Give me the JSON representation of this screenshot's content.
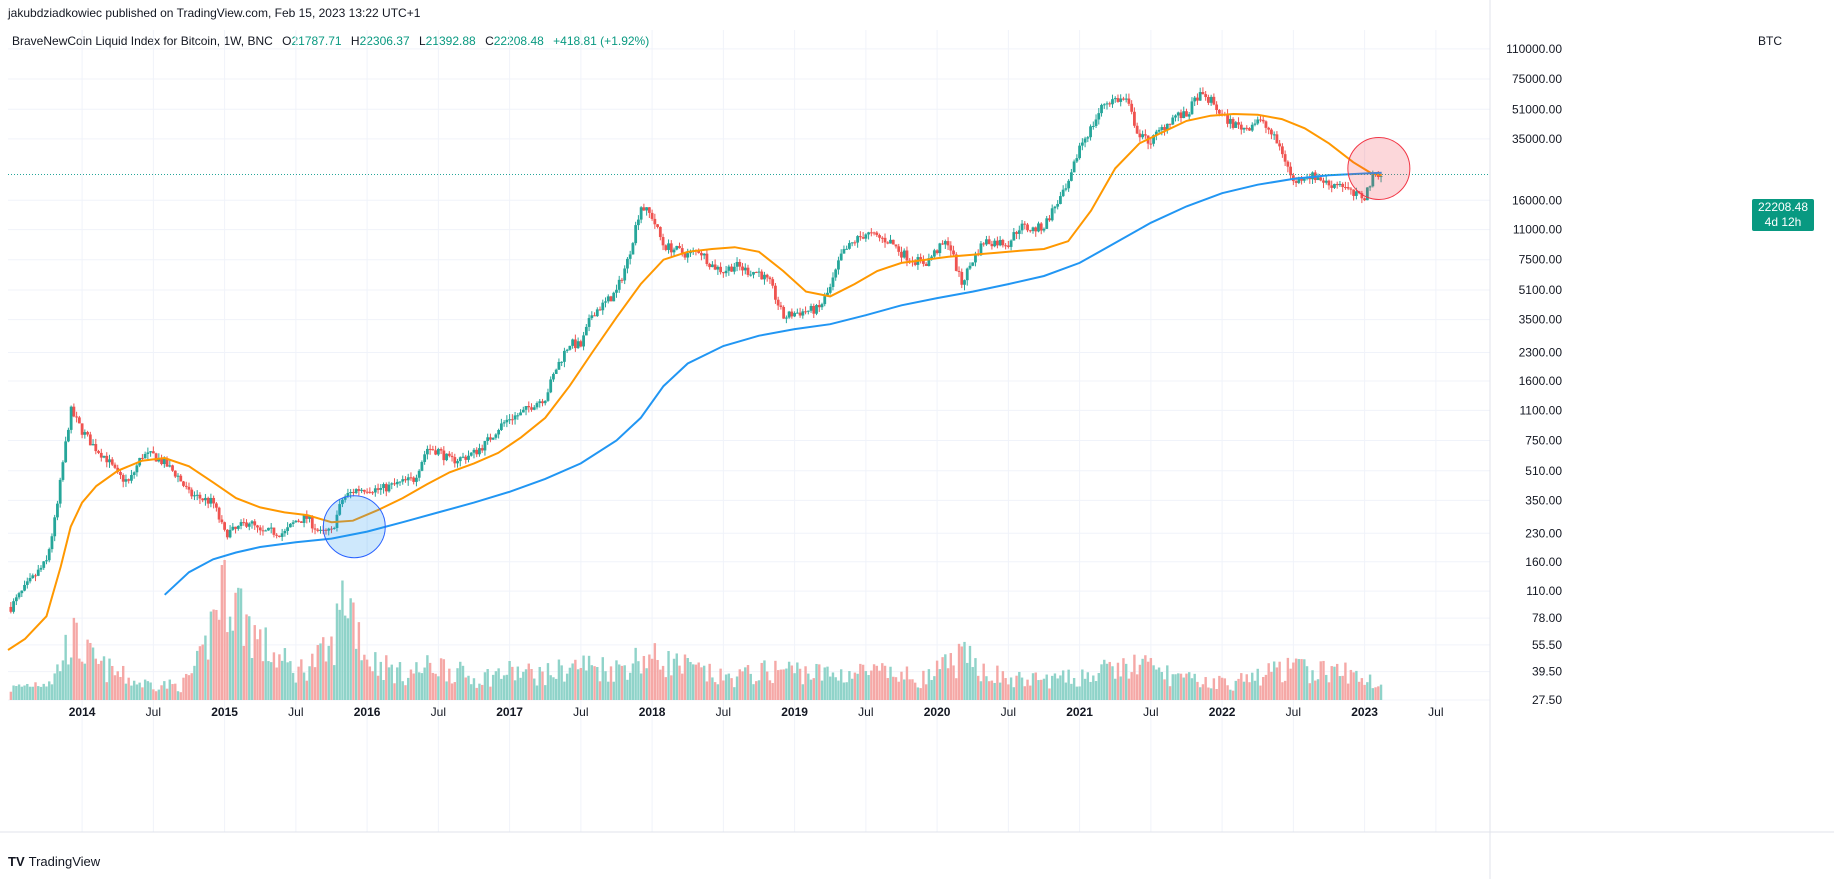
{
  "header": {
    "published": "jakubdziadkowiec published on TradingView.com, Feb 15, 2023 13:22 UTC+1"
  },
  "legend": {
    "symbol": "BraveNewCoin Liquid Index for Bitcoin, 1W, BNC",
    "open_label": "O",
    "open": "21787.71",
    "high_label": "H",
    "high": "22306.37",
    "low_label": "L",
    "low": "21392.88",
    "close_label": "C",
    "close": "22208.48",
    "change": "+418.81 (+1.92%)"
  },
  "price_axis": {
    "currency": "BTC",
    "current_price": "22208.48",
    "countdown": "4d 12h"
  },
  "footer": {
    "logo_text": "TradingView"
  },
  "colors": {
    "up": "#26a69a",
    "down": "#ef5350",
    "ma_fast": "#ff9800",
    "ma_slow": "#2196f3",
    "volume_up": "#8fd3c9",
    "volume_down": "#f5a8a6"
  },
  "chart_data": {
    "type": "candlestick",
    "title": "BraveNewCoin Liquid Index for Bitcoin, 1W, BNC",
    "scale": "log",
    "ylim": [
      27.5,
      110000
    ],
    "y_ticks": [
      {
        "v": 110000,
        "label": "110000.00"
      },
      {
        "v": 75000,
        "label": "75000.00"
      },
      {
        "v": 51000,
        "label": "51000.00"
      },
      {
        "v": 35000,
        "label": "35000.00"
      },
      {
        "v": 16000,
        "label": "16000.00"
      },
      {
        "v": 11000,
        "label": "11000.00"
      },
      {
        "v": 7500,
        "label": "7500.00"
      },
      {
        "v": 5100,
        "label": "5100.00"
      },
      {
        "v": 3500,
        "label": "3500.00"
      },
      {
        "v": 2300,
        "label": "2300.00"
      },
      {
        "v": 1600,
        "label": "1600.00"
      },
      {
        "v": 1100,
        "label": "1100.00"
      },
      {
        "v": 750,
        "label": "750.00"
      },
      {
        "v": 510,
        "label": "510.00"
      },
      {
        "v": 350,
        "label": "350.00"
      },
      {
        "v": 230,
        "label": "230.00"
      },
      {
        "v": 160,
        "label": "160.00"
      },
      {
        "v": 110,
        "label": "110.00"
      },
      {
        "v": 78,
        "label": "78.00"
      },
      {
        "v": 55.5,
        "label": "55.50"
      },
      {
        "v": 39.5,
        "label": "39.50"
      },
      {
        "v": 27.5,
        "label": "27.50"
      }
    ],
    "x_ticks": [
      {
        "t": 2014.0,
        "label": "2014"
      },
      {
        "t": 2014.5,
        "label": "Jul"
      },
      {
        "t": 2015.0,
        "label": "2015"
      },
      {
        "t": 2015.5,
        "label": "Jul"
      },
      {
        "t": 2016.0,
        "label": "2016"
      },
      {
        "t": 2016.5,
        "label": "Jul"
      },
      {
        "t": 2017.0,
        "label": "2017"
      },
      {
        "t": 2017.5,
        "label": "Jul"
      },
      {
        "t": 2018.0,
        "label": "2018"
      },
      {
        "t": 2018.5,
        "label": "Jul"
      },
      {
        "t": 2019.0,
        "label": "2019"
      },
      {
        "t": 2019.5,
        "label": "Jul"
      },
      {
        "t": 2020.0,
        "label": "2020"
      },
      {
        "t": 2020.5,
        "label": "Jul"
      },
      {
        "t": 2021.0,
        "label": "2021"
      },
      {
        "t": 2021.5,
        "label": "Jul"
      },
      {
        "t": 2022.0,
        "label": "2022"
      },
      {
        "t": 2022.5,
        "label": "Jul"
      },
      {
        "t": 2023.0,
        "label": "2023"
      },
      {
        "t": 2023.5,
        "label": "Jul"
      }
    ],
    "xlim": [
      2013.48,
      2023.88
    ],
    "price_path": [
      [
        2013.5,
        90
      ],
      [
        2013.62,
        120
      ],
      [
        2013.75,
        160
      ],
      [
        2013.82,
        300
      ],
      [
        2013.87,
        600
      ],
      [
        2013.92,
        1100
      ],
      [
        2014.0,
        850
      ],
      [
        2014.08,
        700
      ],
      [
        2014.17,
        600
      ],
      [
        2014.25,
        480
      ],
      [
        2014.33,
        440
      ],
      [
        2014.42,
        620
      ],
      [
        2014.5,
        620
      ],
      [
        2014.58,
        560
      ],
      [
        2014.67,
        480
      ],
      [
        2014.75,
        380
      ],
      [
        2014.83,
        360
      ],
      [
        2014.92,
        340
      ],
      [
        2015.0,
        230
      ],
      [
        2015.08,
        240
      ],
      [
        2015.17,
        270
      ],
      [
        2015.25,
        230
      ],
      [
        2015.33,
        235
      ],
      [
        2015.42,
        230
      ],
      [
        2015.5,
        270
      ],
      [
        2015.58,
        280
      ],
      [
        2015.67,
        230
      ],
      [
        2015.75,
        235
      ],
      [
        2015.83,
        360
      ],
      [
        2015.92,
        400
      ],
      [
        2016.0,
        410
      ],
      [
        2016.08,
        400
      ],
      [
        2016.17,
        420
      ],
      [
        2016.25,
        440
      ],
      [
        2016.33,
        460
      ],
      [
        2016.42,
        680
      ],
      [
        2016.5,
        660
      ],
      [
        2016.58,
        580
      ],
      [
        2016.67,
        600
      ],
      [
        2016.75,
        640
      ],
      [
        2016.83,
        720
      ],
      [
        2016.92,
        880
      ],
      [
        2017.0,
        1000
      ],
      [
        2017.08,
        1050
      ],
      [
        2017.17,
        1200
      ],
      [
        2017.25,
        1300
      ],
      [
        2017.33,
        1900
      ],
      [
        2017.42,
        2600
      ],
      [
        2017.5,
        2500
      ],
      [
        2017.58,
        3800
      ],
      [
        2017.67,
        4300
      ],
      [
        2017.75,
        5000
      ],
      [
        2017.83,
        7500
      ],
      [
        2017.92,
        15000
      ],
      [
        2018.0,
        13000
      ],
      [
        2018.08,
        9000
      ],
      [
        2018.17,
        8500
      ],
      [
        2018.25,
        8000
      ],
      [
        2018.33,
        8500
      ],
      [
        2018.42,
        7000
      ],
      [
        2018.5,
        6500
      ],
      [
        2018.58,
        7000
      ],
      [
        2018.67,
        6500
      ],
      [
        2018.75,
        6400
      ],
      [
        2018.83,
        5500
      ],
      [
        2018.92,
        3600
      ],
      [
        2019.0,
        3800
      ],
      [
        2019.08,
        3900
      ],
      [
        2019.17,
        4000
      ],
      [
        2019.25,
        5200
      ],
      [
        2019.33,
        8000
      ],
      [
        2019.42,
        9500
      ],
      [
        2019.5,
        10500
      ],
      [
        2019.58,
        10000
      ],
      [
        2019.67,
        9500
      ],
      [
        2019.75,
        8200
      ],
      [
        2019.83,
        7500
      ],
      [
        2019.92,
        7200
      ],
      [
        2020.0,
        8500
      ],
      [
        2020.08,
        9500
      ],
      [
        2020.17,
        5500
      ],
      [
        2020.25,
        7500
      ],
      [
        2020.33,
        9500
      ],
      [
        2020.42,
        9400
      ],
      [
        2020.5,
        9300
      ],
      [
        2020.58,
        11500
      ],
      [
        2020.67,
        11000
      ],
      [
        2020.75,
        11500
      ],
      [
        2020.83,
        15000
      ],
      [
        2020.92,
        19000
      ],
      [
        2021.0,
        32000
      ],
      [
        2021.08,
        40000
      ],
      [
        2021.17,
        55000
      ],
      [
        2021.25,
        58000
      ],
      [
        2021.33,
        57000
      ],
      [
        2021.42,
        36000
      ],
      [
        2021.5,
        34000
      ],
      [
        2021.58,
        40000
      ],
      [
        2021.67,
        47000
      ],
      [
        2021.75,
        47000
      ],
      [
        2021.83,
        61000
      ],
      [
        2021.92,
        57000
      ],
      [
        2022.0,
        47000
      ],
      [
        2022.08,
        42000
      ],
      [
        2022.17,
        40000
      ],
      [
        2022.25,
        45000
      ],
      [
        2022.33,
        39000
      ],
      [
        2022.42,
        30000
      ],
      [
        2022.5,
        20000
      ],
      [
        2022.58,
        22000
      ],
      [
        2022.67,
        21500
      ],
      [
        2022.75,
        19500
      ],
      [
        2022.83,
        20000
      ],
      [
        2022.92,
        17000
      ],
      [
        2023.0,
        16800
      ],
      [
        2023.05,
        21000
      ],
      [
        2023.09,
        23000
      ],
      [
        2023.12,
        22208
      ]
    ],
    "series": [
      {
        "name": "MA fast (orange)",
        "points": [
          [
            2013.48,
            52
          ],
          [
            2013.6,
            60
          ],
          [
            2013.75,
            80
          ],
          [
            2013.85,
            150
          ],
          [
            2013.92,
            250
          ],
          [
            2014.0,
            340
          ],
          [
            2014.1,
            420
          ],
          [
            2014.25,
            510
          ],
          [
            2014.42,
            580
          ],
          [
            2014.58,
            600
          ],
          [
            2014.75,
            540
          ],
          [
            2014.92,
            440
          ],
          [
            2015.08,
            360
          ],
          [
            2015.25,
            320
          ],
          [
            2015.42,
            300
          ],
          [
            2015.58,
            290
          ],
          [
            2015.75,
            265
          ],
          [
            2015.9,
            270
          ],
          [
            2016.08,
            310
          ],
          [
            2016.25,
            360
          ],
          [
            2016.42,
            430
          ],
          [
            2016.58,
            500
          ],
          [
            2016.75,
            560
          ],
          [
            2016.92,
            640
          ],
          [
            2017.08,
            780
          ],
          [
            2017.25,
            1000
          ],
          [
            2017.42,
            1500
          ],
          [
            2017.58,
            2300
          ],
          [
            2017.75,
            3600
          ],
          [
            2017.92,
            5500
          ],
          [
            2018.08,
            7500
          ],
          [
            2018.25,
            8300
          ],
          [
            2018.42,
            8600
          ],
          [
            2018.58,
            8800
          ],
          [
            2018.75,
            8300
          ],
          [
            2018.92,
            6500
          ],
          [
            2019.08,
            5000
          ],
          [
            2019.25,
            4700
          ],
          [
            2019.42,
            5500
          ],
          [
            2019.58,
            6500
          ],
          [
            2019.75,
            7200
          ],
          [
            2019.92,
            7500
          ],
          [
            2020.08,
            7800
          ],
          [
            2020.25,
            8000
          ],
          [
            2020.42,
            8200
          ],
          [
            2020.58,
            8400
          ],
          [
            2020.75,
            8600
          ],
          [
            2020.92,
            9500
          ],
          [
            2021.08,
            14000
          ],
          [
            2021.25,
            24000
          ],
          [
            2021.42,
            33000
          ],
          [
            2021.58,
            38000
          ],
          [
            2021.75,
            44000
          ],
          [
            2021.92,
            47000
          ],
          [
            2022.08,
            48000
          ],
          [
            2022.25,
            47500
          ],
          [
            2022.42,
            45000
          ],
          [
            2022.58,
            40000
          ],
          [
            2022.75,
            33000
          ],
          [
            2022.92,
            26000
          ],
          [
            2023.05,
            22500
          ],
          [
            2023.12,
            22000
          ]
        ]
      },
      {
        "name": "MA slow (blue)",
        "points": [
          [
            2014.58,
            105
          ],
          [
            2014.75,
            140
          ],
          [
            2014.92,
            165
          ],
          [
            2015.08,
            180
          ],
          [
            2015.25,
            193
          ],
          [
            2015.5,
            205
          ],
          [
            2015.75,
            215
          ],
          [
            2016.0,
            235
          ],
          [
            2016.25,
            265
          ],
          [
            2016.5,
            300
          ],
          [
            2016.75,
            340
          ],
          [
            2017.0,
            390
          ],
          [
            2017.25,
            460
          ],
          [
            2017.5,
            560
          ],
          [
            2017.75,
            750
          ],
          [
            2017.92,
            1000
          ],
          [
            2018.08,
            1500
          ],
          [
            2018.25,
            2000
          ],
          [
            2018.5,
            2500
          ],
          [
            2018.75,
            2850
          ],
          [
            2019.0,
            3100
          ],
          [
            2019.25,
            3300
          ],
          [
            2019.5,
            3700
          ],
          [
            2019.75,
            4200
          ],
          [
            2020.0,
            4600
          ],
          [
            2020.25,
            5000
          ],
          [
            2020.5,
            5500
          ],
          [
            2020.75,
            6100
          ],
          [
            2021.0,
            7200
          ],
          [
            2021.25,
            9300
          ],
          [
            2021.5,
            12000
          ],
          [
            2021.75,
            14800
          ],
          [
            2022.0,
            17500
          ],
          [
            2022.25,
            19500
          ],
          [
            2022.5,
            21000
          ],
          [
            2022.75,
            22000
          ],
          [
            2023.0,
            22500
          ],
          [
            2023.12,
            22700
          ]
        ]
      }
    ],
    "volume_ylim": [
      0,
      1
    ],
    "volume_path": [
      [
        2013.5,
        0.08
      ],
      [
        2013.8,
        0.15
      ],
      [
        2013.92,
        0.45
      ],
      [
        2014.1,
        0.25
      ],
      [
        2014.4,
        0.12
      ],
      [
        2014.7,
        0.1
      ],
      [
        2014.85,
        0.3
      ],
      [
        2014.92,
        0.6
      ],
      [
        2015.0,
        0.9
      ],
      [
        2015.08,
        0.7
      ],
      [
        2015.25,
        0.4
      ],
      [
        2015.5,
        0.2
      ],
      [
        2015.75,
        0.35
      ],
      [
        2015.85,
        0.8
      ],
      [
        2016.0,
        0.3
      ],
      [
        2016.25,
        0.18
      ],
      [
        2016.5,
        0.25
      ],
      [
        2016.75,
        0.15
      ],
      [
        2017.0,
        0.2
      ],
      [
        2017.25,
        0.18
      ],
      [
        2017.5,
        0.25
      ],
      [
        2017.75,
        0.22
      ],
      [
        2017.92,
        0.3
      ],
      [
        2018.08,
        0.28
      ],
      [
        2018.5,
        0.15
      ],
      [
        2018.92,
        0.22
      ],
      [
        2019.25,
        0.18
      ],
      [
        2019.5,
        0.2
      ],
      [
        2019.92,
        0.15
      ],
      [
        2020.17,
        0.3
      ],
      [
        2020.5,
        0.14
      ],
      [
        2020.92,
        0.15
      ],
      [
        2021.17,
        0.2
      ],
      [
        2021.42,
        0.25
      ],
      [
        2021.75,
        0.14
      ],
      [
        2022.08,
        0.12
      ],
      [
        2022.42,
        0.22
      ],
      [
        2022.83,
        0.2
      ],
      [
        2023.12,
        0.12
      ]
    ],
    "annotations": [
      {
        "type": "circle",
        "color": "blue",
        "t": 2015.91,
        "price": 250,
        "note": "golden cross"
      },
      {
        "type": "circle",
        "color": "red",
        "t": 2023.1,
        "price": 24000,
        "note": "death cross"
      }
    ]
  }
}
